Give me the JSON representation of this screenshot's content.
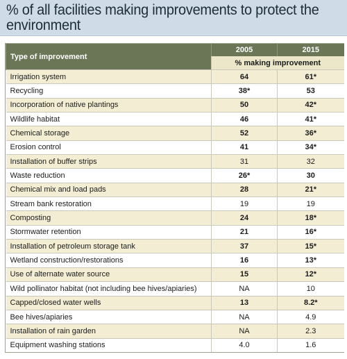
{
  "title": "% of all facilities making improvements to protect the environment",
  "table": {
    "col_type": "Type of improvement",
    "col_2005": "2005",
    "col_2015": "2015",
    "subheader": "% making improvement",
    "colors": {
      "header": "#6b7657",
      "subheader": "#ece7c9",
      "shade": "#f3edd4",
      "title_bg": "#cfdbe7"
    },
    "rows": [
      {
        "label": "Irrigation system",
        "v2005": "64",
        "v2015": "61*",
        "bold": true
      },
      {
        "label": "Recycling",
        "v2005": "38*",
        "v2015": "53",
        "bold": true
      },
      {
        "label": "Incorporation of native plantings",
        "v2005": "50",
        "v2015": "42*",
        "bold": true
      },
      {
        "label": "Wildlife habitat",
        "v2005": "46",
        "v2015": "41*",
        "bold": true
      },
      {
        "label": "Chemical storage",
        "v2005": "52",
        "v2015": "36*",
        "bold": true
      },
      {
        "label": "Erosion control",
        "v2005": "41",
        "v2015": "34*",
        "bold": true
      },
      {
        "label": "Installation of buffer strips",
        "v2005": "31",
        "v2015": "32",
        "bold": false
      },
      {
        "label": "Waste reduction",
        "v2005": "26*",
        "v2015": "30",
        "bold": true
      },
      {
        "label": "Chemical mix and load pads",
        "v2005": "28",
        "v2015": "21*",
        "bold": true
      },
      {
        "label": "Stream bank restoration",
        "v2005": "19",
        "v2015": "19",
        "bold": false
      },
      {
        "label": "Composting",
        "v2005": "24",
        "v2015": "18*",
        "bold": true
      },
      {
        "label": "Stormwater retention",
        "v2005": "21",
        "v2015": "16*",
        "bold": true
      },
      {
        "label": "Installation of petroleum storage tank",
        "v2005": "37",
        "v2015": "15*",
        "bold": true
      },
      {
        "label": "Wetland construction/restorations",
        "v2005": "16",
        "v2015": "13*",
        "bold": true
      },
      {
        "label": "Use of alternate water source",
        "v2005": "15",
        "v2015": "12*",
        "bold": true
      },
      {
        "label": "Wild pollinator habitat (not including bee hives/apiaries)",
        "v2005": "NA",
        "v2015": "10",
        "bold": false
      },
      {
        "label": "Capped/closed water wells",
        "v2005": "13",
        "v2015": "8.2*",
        "bold": true
      },
      {
        "label": "Bee hives/apiaries",
        "v2005": "NA",
        "v2015": "4.9",
        "bold": false
      },
      {
        "label": "Installation of rain garden",
        "v2005": "NA",
        "v2015": "2.3",
        "bold": false
      },
      {
        "label": "Equipment washing stations",
        "v2005": "4.0",
        "v2015": "1.6",
        "bold": false
      }
    ]
  }
}
